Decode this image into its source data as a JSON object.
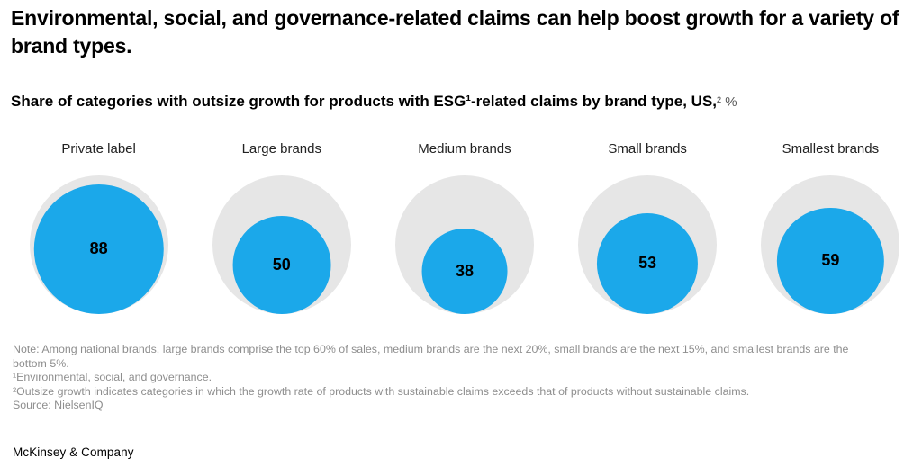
{
  "header": {
    "title": "Environmental, social, and governance-related claims can help boost growth for a variety of brand types.",
    "subtitle_main": "Share of categories with outsize growth for products with ESG¹-related claims by brand type, US,",
    "subtitle_unit": "² %"
  },
  "chart_data": {
    "type": "nested-bubble",
    "title": "Share of categories with outsize growth for products with ESG-related claims by brand type, US, %",
    "categories": [
      "Private label",
      "Large brands",
      "Medium brands",
      "Small brands",
      "Smallest brands"
    ],
    "values": [
      88,
      50,
      38,
      53,
      59
    ],
    "max_value": 100,
    "unit": "%",
    "legend_position": "none",
    "layout": "inner circle area proportional to value, bottom-aligned inside full-scale outer circle",
    "colors": {
      "inner_circle": "#1BA8EA",
      "outer_circle": "#E6E6E6",
      "value_text": "#000000"
    }
  },
  "notes": [
    "Note: Among national brands, large brands comprise the top 60% of sales, medium brands are the next 20%, small brands are the next 15%, and smallest brands are the bottom 5%.",
    "¹Environmental, social, and governance.",
    "²Outsize growth indicates categories in which the growth rate of products with sustainable claims exceeds that of products without sustainable claims.",
    "Source: NielsenIQ"
  ],
  "footer": {
    "brand": "McKinsey & Company"
  }
}
